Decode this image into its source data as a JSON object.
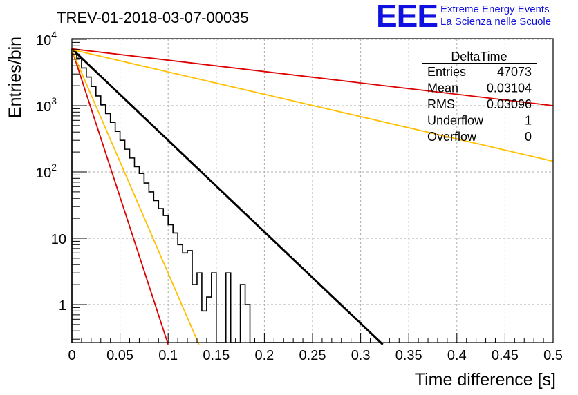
{
  "header": {
    "run_title": "TREV-01-2018-03-07-00035",
    "logo_text": "EEE",
    "logo_line1": "Extreme Energy Events",
    "logo_line2": "La Scienza nelle Scuole",
    "logo_color": "#1010e0"
  },
  "stats_box": {
    "title": "DeltaTime",
    "rows": [
      {
        "label": "Entries",
        "value": "47073"
      },
      {
        "label": "Mean",
        "value": "0.03104"
      },
      {
        "label": "RMS",
        "value": "0.03096"
      },
      {
        "label": "Underflow",
        "value": "1"
      },
      {
        "label": "Overflow",
        "value": "0"
      }
    ]
  },
  "chart_data": {
    "type": "line",
    "title": "TREV-01-2018-03-07-00035",
    "xlabel": "Time difference [s]",
    "ylabel": "Entries/bin",
    "xlim": [
      0,
      0.5
    ],
    "ylim": [
      0.25,
      12000
    ],
    "yscale": "log",
    "grid": true,
    "x_ticks": [
      "0",
      "0.05",
      "0.1",
      "0.15",
      "0.2",
      "0.25",
      "0.3",
      "0.35",
      "0.4",
      "0.45",
      "0.5"
    ],
    "y_ticks": [
      "1",
      "10",
      "10^2",
      "10^3",
      "10^4"
    ],
    "histogram": {
      "bin_width": 0.005,
      "color": "#000000",
      "values": [
        7100,
        5200,
        3700,
        2700,
        1950,
        1400,
        1030,
        760,
        560,
        410,
        300,
        220,
        162,
        120,
        95,
        68,
        50,
        37,
        28,
        22,
        16,
        12,
        8,
        6,
        6.5,
        2,
        3,
        0.8,
        1.3,
        3,
        0.25,
        0.25,
        3,
        0.25,
        0.25,
        2,
        1,
        0.25,
        0.25,
        0.25,
        0.25,
        0.25,
        0.25,
        0.25,
        0.25,
        0.25,
        0.25,
        0.25,
        0.25,
        0.25
      ]
    },
    "fits": [
      {
        "color": "#000000",
        "x": [
          0,
          0.323
        ],
        "y": [
          7200,
          0.25
        ]
      },
      {
        "color": "#dd0000",
        "x": [
          0,
          0.1
        ],
        "y": [
          7000,
          0.25
        ]
      },
      {
        "color": "#ffc000",
        "x": [
          0,
          0.132
        ],
        "y": [
          6800,
          0.25
        ]
      },
      {
        "color": "#ffc000",
        "x": [
          0,
          0.5
        ],
        "y": [
          7000,
          145
        ]
      },
      {
        "color": "#dd0000",
        "x": [
          0,
          0.5
        ],
        "y": [
          7200,
          1000
        ]
      }
    ]
  }
}
